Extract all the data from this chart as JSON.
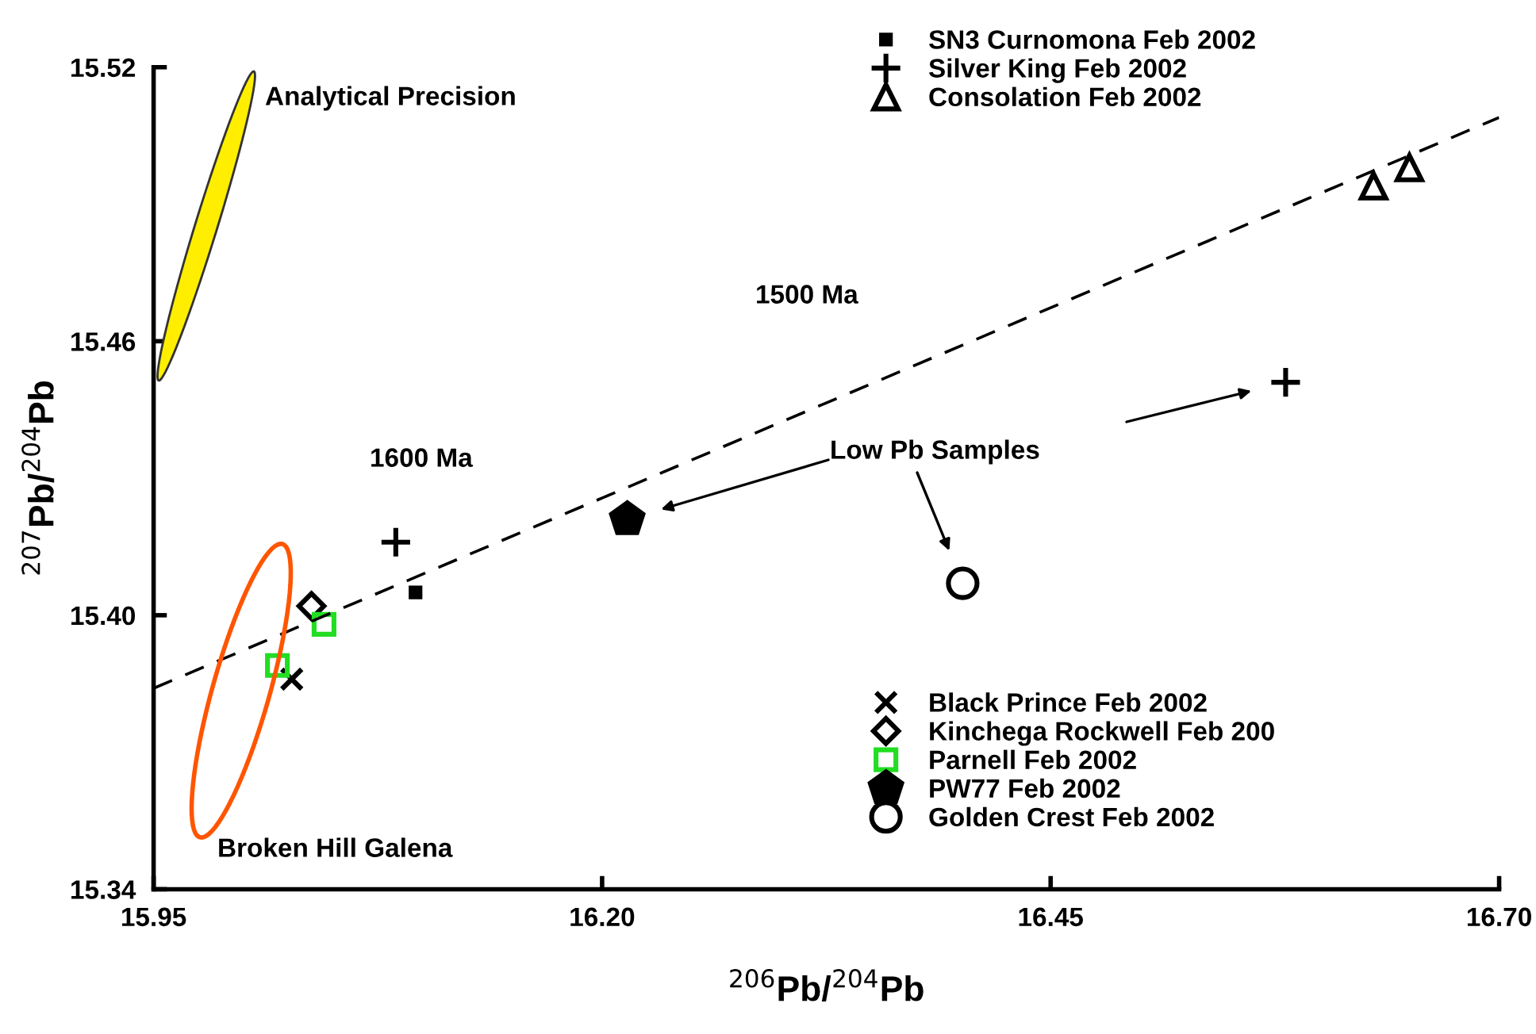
{
  "chart_data": {
    "type": "scatter",
    "xlabel": "$^{206}$Pb/$^{204}$Pb",
    "ylabel": "$^{207}$Pb/$^{204}$Pb",
    "xlim": [
      15.95,
      16.7
    ],
    "xticks": [
      {
        "value": 15.95,
        "label": "15.95"
      },
      {
        "value": 16.2,
        "label": "16.20"
      },
      {
        "value": 16.45,
        "label": "16.45"
      },
      {
        "value": 16.7,
        "label": "16.70"
      }
    ],
    "ylim": [
      15.34,
      15.52
    ],
    "yticks": [
      {
        "value": 15.34,
        "label": "15.34"
      },
      {
        "value": 15.4,
        "label": "15.40"
      },
      {
        "value": 15.46,
        "label": "15.46"
      },
      {
        "value": 15.52,
        "label": "15.52"
      }
    ],
    "grid": false,
    "legend": "right",
    "series": [
      {
        "name": "SN3 Curnomona Feb 2002",
        "color": "#000000",
        "x": [
          16.096
        ],
        "values": [
          15.405
        ]
      },
      {
        "name": "Silver King Feb 2002",
        "color": "#000000",
        "marker": "plus",
        "x": [
          16.085,
          16.581
        ],
        "values": [
          15.416,
          15.451
        ]
      },
      {
        "name": "Consolation Feb 2002",
        "color": "#000000",
        "marker": "triangle",
        "x": [
          16.63,
          16.65
        ],
        "values": [
          15.494,
          15.498
        ]
      },
      {
        "name": "Black Prince Feb 2002",
        "color": "#000000",
        "marker": "cross",
        "x": [
          16.027
        ],
        "values": [
          15.386
        ]
      },
      {
        "name": "Kinchega Rockwell Feb 200",
        "color": "#000000",
        "marker": "diamond",
        "x": [
          16.038
        ],
        "values": [
          15.402
        ]
      },
      {
        "name": "Parnell Feb 2002",
        "color": "#22dd22",
        "marker": "square",
        "x": [
          16.019,
          16.045
        ],
        "values": [
          15.389,
          15.398
        ]
      },
      {
        "name": "PW77 Feb 2002",
        "color": "#000000",
        "x": [
          16.214
        ],
        "values": [
          15.421
        ]
      },
      {
        "name": "Golden Crest Feb 2002",
        "color": "#000000",
        "marker": "circle",
        "x": [
          16.401
        ],
        "values": [
          15.407
        ]
      },
      {
        "type": "line",
        "color": "#000000",
        "line_style": "dashed",
        "x": [
          15.95,
          16.7
        ],
        "values": [
          15.384,
          15.509
        ]
      }
    ],
    "annotations": [
      "Analytical Precision",
      "1500 Ma",
      "1600 Ma",
      "Low Pb Samples",
      "Broken Hill Galena"
    ]
  }
}
